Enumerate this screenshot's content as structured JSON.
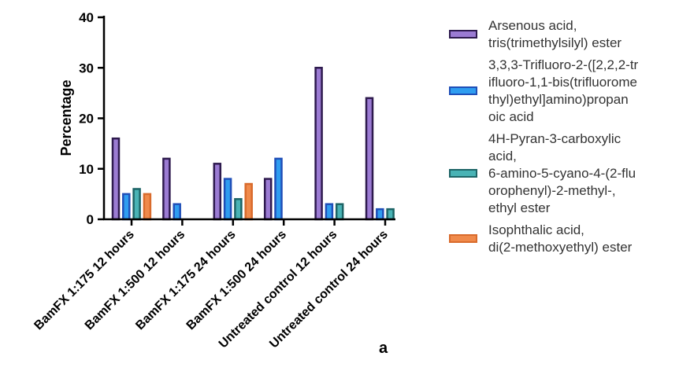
{
  "chart_data": {
    "type": "bar",
    "categories": [
      "BamFX 1:175 12 hours",
      "BamFX 1:500 12 hours",
      "BamFX 1:175 24 hours",
      "BamFX 1:500 24 hours",
      "Untreated control 12 hours",
      "Untreated control 24 hours"
    ],
    "series": [
      {
        "name": "Arsenous acid,\ntris(trimethylsilyl) ester",
        "fill": "#9b7bd3",
        "stroke": "#2e1a4e",
        "values": [
          16,
          12,
          11,
          8,
          30,
          24
        ]
      },
      {
        "name": "3,3,3-Trifluoro-2-([2,2,2-tr\nifluoro-1,1-bis(trifluorome\nthyl)ethyl]amino)propan\noic acid",
        "fill": "#2f9df0",
        "stroke": "#1f4fb8",
        "values": [
          5,
          3,
          8,
          12,
          3,
          2
        ]
      },
      {
        "name": "4H-Pyran-3-carboxylic\nacid,\n6-amino-5-cyano-4-(2-flu\norophenyl)-2-methyl-,\nethyl ester",
        "fill": "#49b3b5",
        "stroke": "#1d6466",
        "values": [
          6,
          0,
          4,
          0,
          3,
          2
        ]
      },
      {
        "name": "Isophthalic acid,\ndi(2-methoxyethyl) ester",
        "fill": "#f08a4b",
        "stroke": "#d96b2c",
        "values": [
          5,
          0,
          7,
          0,
          0,
          0
        ]
      }
    ],
    "ylabel": "Percentage",
    "xlabel": "",
    "ylim": [
      0,
      40
    ],
    "yticks": [
      0,
      10,
      20,
      30,
      40
    ],
    "legend_position": "right",
    "panel_label": "a"
  }
}
